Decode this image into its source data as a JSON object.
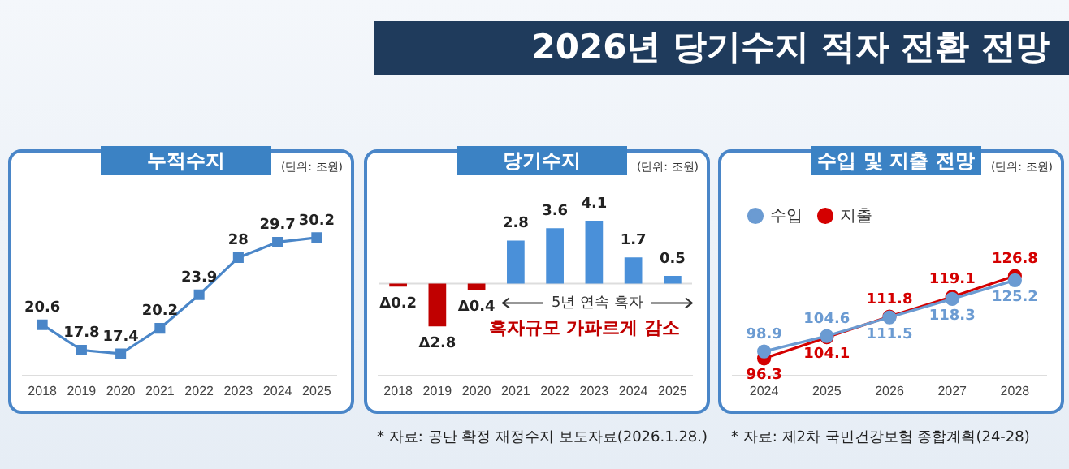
{
  "chart_data": [
    {
      "type": "other",
      "title": "2026년 당기수지 적자 전환 전망"
    },
    {
      "type": "line",
      "title": "누적수지",
      "annotations": [
        "(단위: 조원)"
      ],
      "categories": [
        "2018",
        "2019",
        "2020",
        "2021",
        "2022",
        "2023",
        "2024",
        "2025"
      ],
      "values": [
        20.6,
        17.8,
        17.4,
        20.2,
        23.9,
        28,
        29.7,
        30.2
      ],
      "color": "#4a86c8",
      "marker": "square",
      "data_labels": true
    },
    {
      "type": "bar",
      "title": "당기수지",
      "annotations": [
        "(단위: 조원)",
        "5년 연속 흑자",
        "흑자규모 가파르게 감소",
        "* 자료: 공단 확정 재정수지 보도자료(2026.1.28.)"
      ],
      "categories": [
        "2018",
        "2019",
        "2020",
        "2021",
        "2022",
        "2023",
        "2024",
        "2025"
      ],
      "values": [
        -0.2,
        -2.8,
        -0.4,
        2.8,
        3.6,
        4.1,
        1.7,
        0.5
      ],
      "colors": [
        "#c00000",
        "#c00000",
        "#c00000",
        "#4a90d9",
        "#4a90d9",
        "#4a90d9",
        "#4a90d9",
        "#4a90d9"
      ],
      "value_labels": [
        "Δ0.2",
        "Δ2.8",
        "Δ0.4",
        "2.8",
        "3.6",
        "4.1",
        "1.7",
        "0.5"
      ]
    },
    {
      "type": "line",
      "title": "수입 및 지출 전망",
      "annotations": [
        "(단위: 조원)",
        "* 자료: 제2차 국민건강보험 종합계획(24-28)"
      ],
      "categories": [
        "2024",
        "2025",
        "2026",
        "2027",
        "2028"
      ],
      "series": [
        {
          "name": "수입",
          "color": "#6b9bd2",
          "values": [
            98.9,
            104.6,
            111.5,
            118.3,
            125.2
          ]
        },
        {
          "name": "지출",
          "color": "#d40000",
          "values": [
            96.3,
            104.1,
            111.8,
            119.1,
            126.8
          ]
        }
      ],
      "marker": "circle",
      "legend": "top left",
      "data_labels": true
    }
  ]
}
